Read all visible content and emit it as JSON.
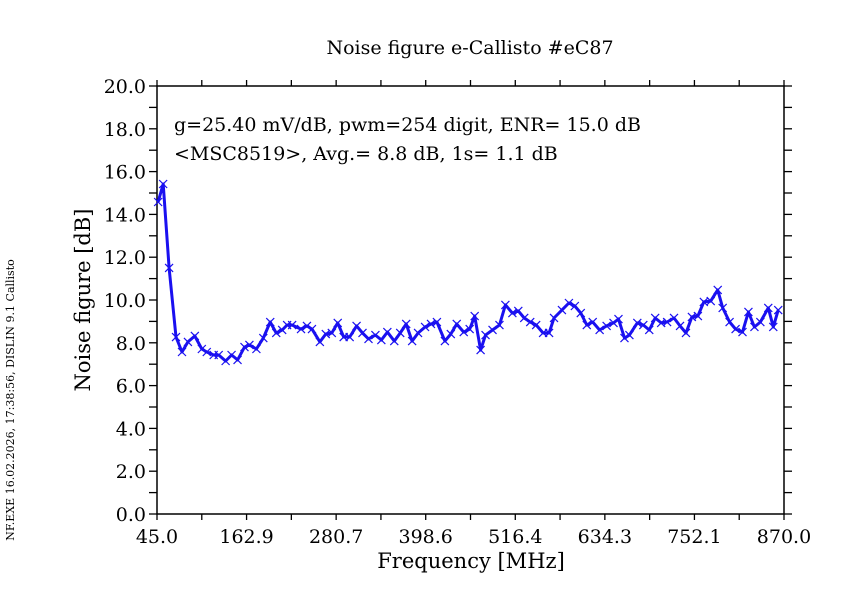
{
  "chart_data": {
    "type": "line",
    "title": "Noise figure e-Callisto #eC87",
    "xlabel": "Frequency [MHz]",
    "ylabel": "Noise figure [dB]",
    "xlim": [
      45.0,
      870.0
    ],
    "ylim": [
      0.0,
      20.0
    ],
    "x_ticks": [
      "45.0",
      "162.9",
      "280.7",
      "398.6",
      "516.4",
      "634.3",
      "752.1",
      "870.0"
    ],
    "y_ticks": [
      "0.0",
      "2.0",
      "4.0",
      "6.0",
      "8.0",
      "10.0",
      "12.0",
      "14.0",
      "16.0",
      "18.0",
      "20.0"
    ],
    "grid": false,
    "annotations": [
      "g=25.40 mV/dB, pwm=254 digit, ENR= 15.0 dB",
      "<MSC8519>, Avg.= 8.8 dB, 1s= 1.1 dB"
    ],
    "side_note": "NF.EXE 16.02.2026, 17:38:56, DISLIN 9.1 Callisto",
    "series": [
      {
        "name": "noise figure",
        "color": "#1a10f0",
        "marker": "x",
        "x": [
          46.5,
          53.1,
          60.9,
          70.0,
          77.9,
          85.7,
          94.8,
          104.0,
          110.5,
          119.6,
          126.2,
          135.3,
          143.1,
          151.0,
          160.1,
          166.6,
          175.8,
          184.9,
          194.0,
          201.9,
          209.7,
          216.2,
          222.8,
          234.5,
          242.3,
          248.9,
          259.3,
          267.1,
          275.0,
          282.8,
          290.6,
          298.5,
          307.6,
          315.4,
          323.3,
          332.4,
          340.2,
          348.1,
          357.2,
          365.0,
          372.9,
          380.7,
          388.5,
          397.7,
          405.5,
          413.3,
          423.8,
          431.6,
          439.4,
          448.6,
          456.4,
          463.0,
          470.8,
          477.3,
          486.5,
          495.6,
          503.4,
          512.6,
          520.4,
          528.2,
          536.1,
          543.9,
          553.0,
          560.9,
          567.4,
          577.8,
          587.0,
          594.8,
          602.6,
          610.5,
          618.3,
          627.4,
          636.6,
          645.7,
          652.2,
          660.1,
          666.6,
          677.0,
          684.9,
          692.7,
          700.5,
          708.4,
          716.2,
          725.3,
          733.2,
          741.0,
          748.8,
          756.7,
          764.5,
          773.6,
          782.8,
          789.3,
          798.4,
          806.3,
          815.4,
          823.2,
          831.1,
          838.9,
          849.3,
          855.9,
          862.4
        ],
        "y": [
          14.58,
          15.42,
          11.5,
          8.27,
          7.57,
          8.04,
          8.32,
          7.71,
          7.57,
          7.43,
          7.43,
          7.15,
          7.43,
          7.2,
          7.8,
          7.9,
          7.71,
          8.22,
          8.97,
          8.46,
          8.6,
          8.83,
          8.83,
          8.64,
          8.79,
          8.64,
          8.04,
          8.41,
          8.46,
          8.93,
          8.27,
          8.27,
          8.79,
          8.46,
          8.18,
          8.36,
          8.13,
          8.5,
          8.08,
          8.46,
          8.88,
          8.08,
          8.46,
          8.74,
          8.88,
          8.97,
          8.08,
          8.41,
          8.88,
          8.5,
          8.64,
          9.25,
          7.66,
          8.36,
          8.6,
          8.83,
          9.77,
          9.39,
          9.49,
          9.16,
          8.97,
          8.83,
          8.46,
          8.46,
          9.16,
          9.53,
          9.86,
          9.72,
          9.39,
          8.83,
          8.97,
          8.6,
          8.79,
          8.93,
          9.11,
          8.22,
          8.36,
          8.93,
          8.83,
          8.6,
          9.16,
          8.93,
          8.97,
          9.16,
          8.79,
          8.46,
          9.21,
          9.25,
          9.91,
          9.95,
          10.47,
          9.63,
          8.97,
          8.64,
          8.5,
          9.44,
          8.74,
          8.97,
          9.63,
          8.74,
          9.53
        ]
      }
    ]
  }
}
